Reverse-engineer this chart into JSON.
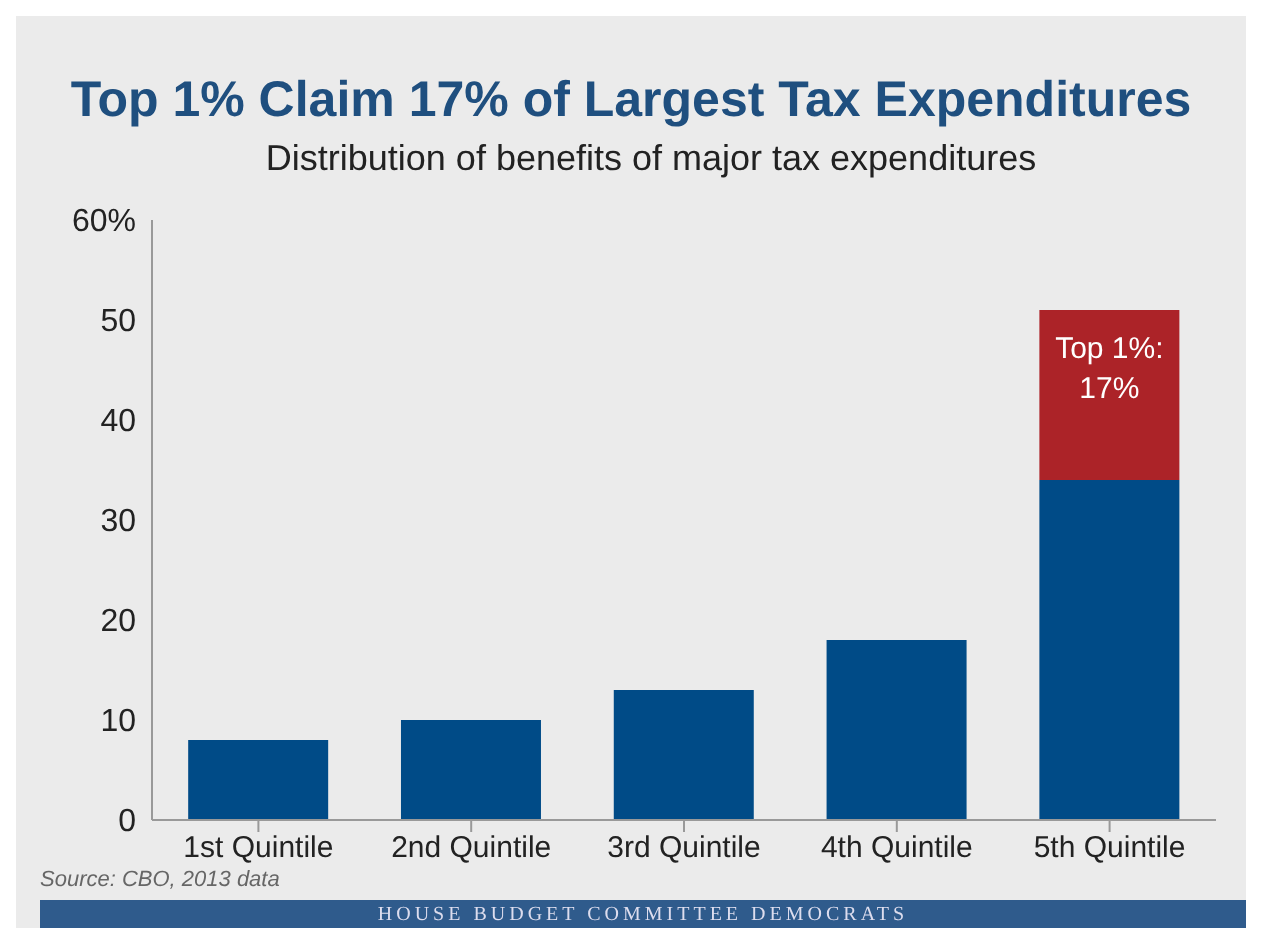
{
  "chart_data": {
    "type": "bar",
    "title": "Top 1% Claim 17% of Largest Tax Expenditures",
    "subtitle": "Distribution of benefits of major tax expenditures",
    "categories": [
      "1st Quintile",
      "2nd Quintile",
      "3rd Quintile",
      "4th Quintile",
      "5th Quintile"
    ],
    "stacked": true,
    "series": [
      {
        "color": "#004b87",
        "values": [
          8,
          10,
          13,
          18,
          34
        ]
      },
      {
        "color": "#ac2328",
        "values": [
          null,
          null,
          null,
          null,
          17
        ],
        "value_labels": [
          null,
          null,
          null,
          null,
          "Top 1%: 17%"
        ]
      }
    ],
    "ylim": [
      0,
      60
    ],
    "yticks": [
      0,
      10,
      20,
      30,
      40,
      50,
      {
        "value": 60,
        "label": "60%"
      }
    ],
    "grid": false,
    "legend": false,
    "annotations": [
      "Source: CBO, 2013 data",
      "HOUSE BUDGET COMMITTEE DEMOCRATS"
    ]
  }
}
